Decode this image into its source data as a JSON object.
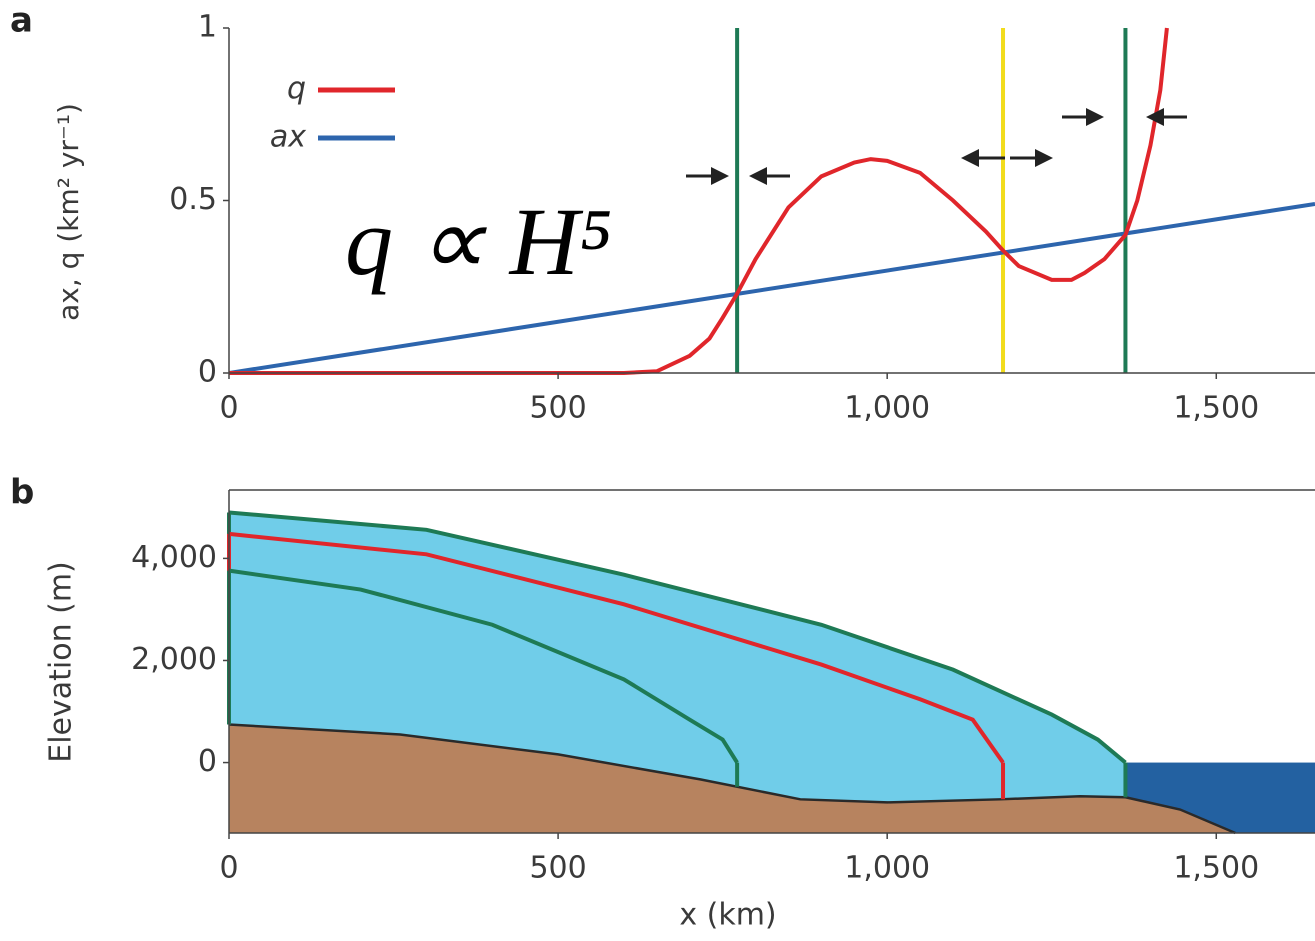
{
  "chart_data": [
    {
      "type": "line",
      "panel": "a",
      "ylabel": "ax, q  (km² yr⁻¹)",
      "annotation": "q ∝ H⁵",
      "xlim": [
        0,
        1650
      ],
      "ylim": [
        0,
        1
      ],
      "xticks": [
        0,
        500,
        {
          "value": 1000,
          "label": "1,000"
        },
        {
          "value": 1500,
          "label": "1,500"
        }
      ],
      "yticks": [
        0,
        0.5,
        1
      ],
      "series": [
        {
          "name": "q",
          "color": "#e0262b",
          "x": [
            0,
            600,
            650,
            700,
            730,
            750,
            772,
            800,
            850,
            900,
            950,
            975,
            1000,
            1050,
            1100,
            1150,
            1176,
            1200,
            1250,
            1280,
            1300,
            1330,
            1362,
            1380,
            1400,
            1415,
            1425
          ],
          "values": [
            0,
            0,
            0.005,
            0.05,
            0.1,
            0.16,
            0.23,
            0.33,
            0.48,
            0.57,
            0.61,
            0.62,
            0.615,
            0.58,
            0.5,
            0.41,
            0.355,
            0.31,
            0.27,
            0.27,
            0.29,
            0.33,
            0.4,
            0.5,
            0.66,
            0.82,
            1
          ]
        },
        {
          "name": "ax",
          "color": "#2d65ad",
          "x": [
            0,
            1650
          ],
          "values": [
            0,
            0.49
          ]
        }
      ],
      "vlines": [
        {
          "x": 772,
          "color": "#1e7a55"
        },
        {
          "x": 1176,
          "color": "#f2dc1c"
        },
        {
          "x": 1362,
          "color": "#1e7a55"
        }
      ]
    },
    {
      "type": "area",
      "panel": "b",
      "ylabel": "Elevation (m)",
      "xlabel": "x (km)",
      "xlim": [
        0,
        1650
      ],
      "ylim": [
        -1380,
        5340
      ],
      "xticks": [
        0,
        500,
        {
          "value": 1000,
          "label": "1,000"
        },
        {
          "value": 1500,
          "label": "1,500"
        }
      ],
      "yticks": [
        0,
        {
          "value": 2000,
          "label": "2,000"
        },
        {
          "value": 4000,
          "label": "4,000"
        }
      ],
      "ice_color": "#70cde9",
      "sea_color": "#2361a1",
      "sea_level": 0,
      "bed": {
        "color": "#b7835f",
        "x": [
          0,
          260,
          500,
          716,
          868,
          1000,
          1172,
          1293,
          1362,
          1445,
          1529
        ],
        "values": [
          745,
          550,
          160,
          -330,
          -720,
          -780,
          -720,
          -660,
          -680,
          -920,
          -1380
        ]
      },
      "series": [
        {
          "color": "#1e7a55",
          "x": [
            0,
            300,
            600,
            900,
            1100,
            1250,
            1320,
            1362
          ],
          "values": [
            4900,
            4560,
            3680,
            2700,
            1820,
            940,
            450,
            0
          ]
        },
        {
          "color": "#e0262b",
          "x": [
            0,
            300,
            600,
            900,
            1050,
            1130,
            1176
          ],
          "values": [
            4480,
            4080,
            3100,
            1920,
            1240,
            840,
            0
          ]
        },
        {
          "color": "#1e7a55",
          "x": [
            0,
            200,
            400,
            600,
            700,
            750,
            772
          ],
          "values": [
            3760,
            3390,
            2700,
            1630,
            840,
            450,
            0
          ]
        }
      ]
    }
  ]
}
